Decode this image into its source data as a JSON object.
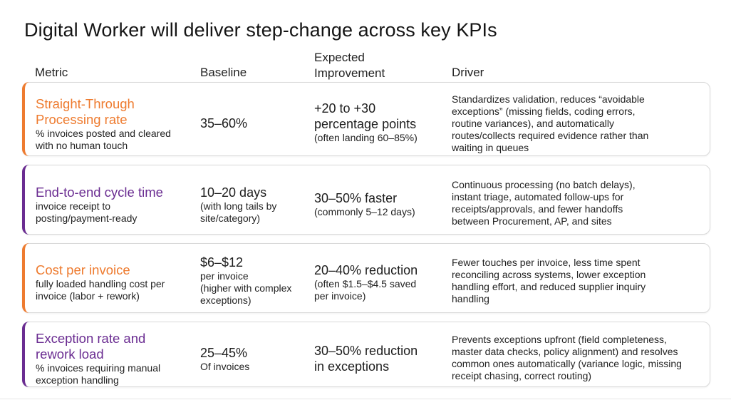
{
  "title": "Digital Worker will deliver step-change across key KPIs",
  "headers": {
    "metric": "Metric",
    "baseline": "Baseline",
    "improvement": "Expected\nImprovement",
    "driver": "Driver"
  },
  "colors": {
    "orange": "#ee7b2f",
    "purple": "#6a2c91"
  },
  "rows": [
    {
      "accent": "orange",
      "metric_title": "Straight-Through\nProcessing rate",
      "metric_sub": "% invoices posted and cleared\nwith no human touch",
      "baseline_main": "35–60%",
      "baseline_sub": "",
      "improvement_main": "+20 to +30\npercentage points",
      "improvement_sub": "(often landing 60–85%)",
      "driver": "Standardizes validation, reduces “avoidable\nexceptions” (missing fields, coding errors,\nroutine variances), and automatically\nroutes/collects required evidence rather than\nwaiting in queues"
    },
    {
      "accent": "purple",
      "metric_title": "End-to-end cycle time",
      "metric_sub": "invoice receipt to\nposting/payment-ready",
      "baseline_main": "10–20 days",
      "baseline_sub": "(with long tails by\nsite/category)",
      "improvement_main": "30–50% faster",
      "improvement_sub": "(commonly 5–12 days)",
      "driver": "Continuous processing (no batch delays),\ninstant triage, automated follow-ups for\nreceipts/approvals, and fewer handoffs\nbetween Procurement, AP, and sites"
    },
    {
      "accent": "orange",
      "metric_title": "Cost per invoice",
      "metric_sub": "fully loaded handling cost per\ninvoice (labor + rework)",
      "baseline_main": "$6–$12",
      "baseline_sub": "per invoice\n(higher with complex\nexceptions)",
      "improvement_main": "20–40% reduction",
      "improvement_sub": "(often $1.5–$4.5 saved\nper invoice)",
      "driver": "Fewer touches per invoice, less time spent\nreconciling across systems, lower exception\nhandling effort, and reduced supplier inquiry\nhandling"
    },
    {
      "accent": "purple",
      "metric_title": "Exception rate and\nrework load",
      "metric_sub": "% invoices requiring manual\nexception handling",
      "baseline_main": "25–45%",
      "baseline_sub": "Of invoices",
      "improvement_main": "30–50% reduction\nin exceptions",
      "improvement_sub": "",
      "driver": "Prevents exceptions upfront (field completeness,\nmaster data checks, policy alignment) and resolves\ncommon ones automatically (variance logic, missing\nreceipt chasing, correct routing)"
    }
  ]
}
